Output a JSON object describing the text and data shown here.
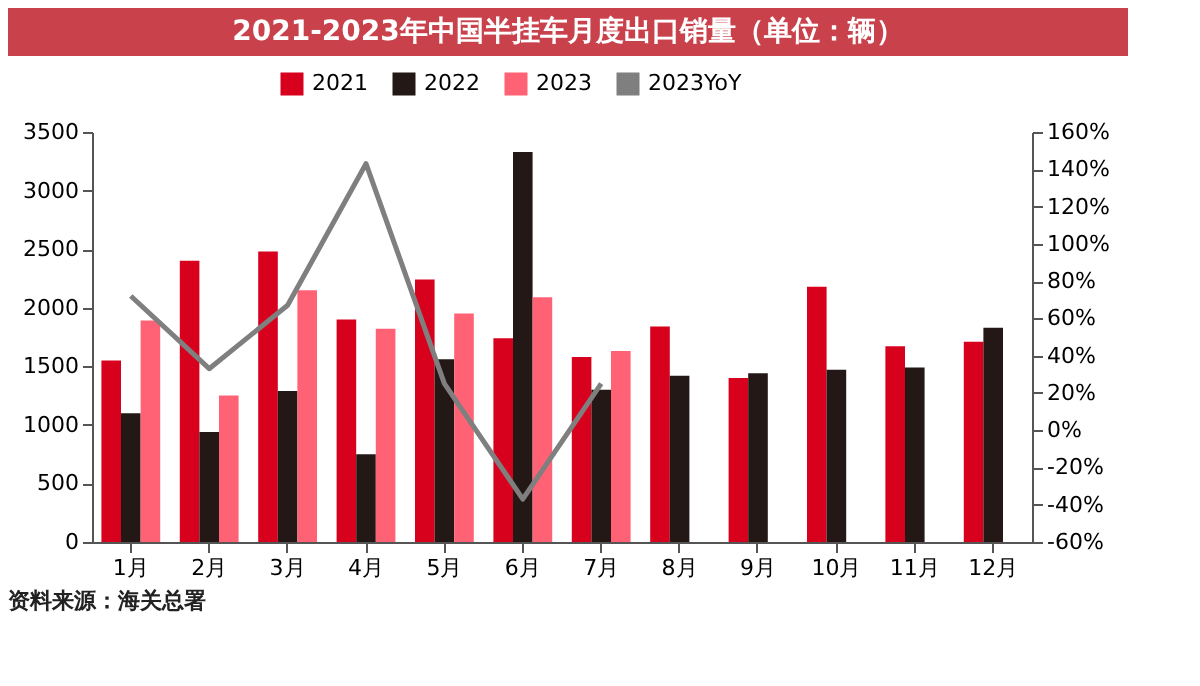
{
  "chart_data": {
    "type": "bar",
    "title": "2021-2023年中国半挂车月度出口销量（单位：辆）",
    "categories": [
      "1月",
      "2月",
      "3月",
      "4月",
      "5月",
      "6月",
      "7月",
      "8月",
      "9月",
      "10月",
      "11月",
      "12月"
    ],
    "series": [
      {
        "name": "2021",
        "color": "#d7001d",
        "values": [
          1550,
          2400,
          2480,
          1900,
          2240,
          1740,
          1580,
          1840,
          1400,
          2180,
          1670,
          1710
        ]
      },
      {
        "name": "2022",
        "color": "#231815",
        "values": [
          1100,
          940,
          1290,
          750,
          1560,
          3330,
          1300,
          1420,
          1440,
          1470,
          1490,
          1830
        ]
      },
      {
        "name": "2023",
        "color": "#ff6275",
        "values": [
          1890,
          1250,
          2150,
          1820,
          1950,
          2090,
          1630,
          null,
          null,
          null,
          null,
          null
        ]
      },
      {
        "name": "2023YoY",
        "type": "line",
        "axis": "y2",
        "color": "#7f7f7f",
        "values": [
          72,
          33,
          67,
          143,
          25,
          -37,
          25,
          null,
          null,
          null,
          null,
          null
        ]
      }
    ],
    "ylim": [
      0,
      3500
    ],
    "yticks": [
      0,
      500,
      1000,
      1500,
      2000,
      2500,
      3000,
      3500
    ],
    "y2lim": [
      -60,
      160
    ],
    "y2ticks": [
      {
        "value": -60,
        "label": "-60%"
      },
      {
        "value": -40,
        "label": "-40%"
      },
      {
        "value": -20,
        "label": "-20%"
      },
      {
        "value": 0,
        "label": "0%"
      },
      {
        "value": 20,
        "label": "20%"
      },
      {
        "value": 40,
        "label": "40%"
      },
      {
        "value": 60,
        "label": "60%"
      },
      {
        "value": 80,
        "label": "80%"
      },
      {
        "value": 100,
        "label": "100%"
      },
      {
        "value": 120,
        "label": "120%"
      },
      {
        "value": 140,
        "label": "140%"
      },
      {
        "value": 160,
        "label": "160%"
      }
    ],
    "legend": "top",
    "grid": false,
    "annotations": [
      "资料来源：海关总署"
    ]
  }
}
